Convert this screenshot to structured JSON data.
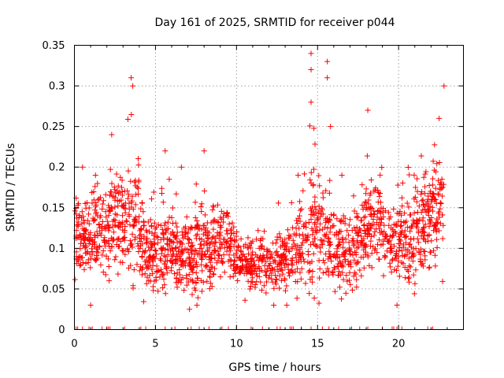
{
  "chart_data": {
    "type": "scatter",
    "title": "Day 161 of 2025, SRMTID for receiver p044",
    "xlabel": "GPS time / hours",
    "ylabel": "SRMTID / TECUs",
    "xlim": [
      0,
      24
    ],
    "ylim": [
      0,
      0.35
    ],
    "x_ticks": [
      0,
      5,
      10,
      15,
      20
    ],
    "x_tick_labels": [
      "0",
      "5",
      "10",
      "15",
      "20"
    ],
    "y_ticks": [
      0,
      0.05,
      0.1,
      0.15,
      0.2,
      0.25,
      0.3,
      0.35
    ],
    "y_tick_labels": [
      "0",
      "0.05",
      "0.1",
      "0.15",
      "0.2",
      "0.25",
      "0.3",
      "0.35"
    ],
    "grid": true,
    "marker": "+",
    "color": "#ff0000",
    "series": [
      {
        "name": "SRMTID",
        "profile": {
          "hours": [
            0,
            0.5,
            1,
            1.5,
            2,
            2.5,
            3,
            3.5,
            4,
            4.5,
            5,
            5.5,
            6,
            6.5,
            7,
            7.5,
            8,
            8.5,
            9,
            9.5,
            10,
            10.5,
            11,
            11.5,
            12,
            12.5,
            13,
            13.5,
            14,
            14.5,
            15,
            15.5,
            16,
            16.5,
            17,
            17.5,
            18,
            18.5,
            19,
            19.5,
            20,
            20.5,
            21,
            21.5,
            22,
            22.5,
            23
          ],
          "typical": [
            0.12,
            0.11,
            0.11,
            0.12,
            0.12,
            0.14,
            0.13,
            0.14,
            0.12,
            0.1,
            0.09,
            0.1,
            0.1,
            0.09,
            0.09,
            0.09,
            0.1,
            0.1,
            0.11,
            0.11,
            0.09,
            0.08,
            0.08,
            0.085,
            0.08,
            0.08,
            0.085,
            0.09,
            0.1,
            0.12,
            0.12,
            0.12,
            0.1,
            0.09,
            0.09,
            0.1,
            0.13,
            0.14,
            0.12,
            0.11,
            0.1,
            0.11,
            0.12,
            0.13,
            0.14,
            0.14,
            0.16
          ],
          "spread": [
            0.05,
            0.06,
            0.05,
            0.05,
            0.07,
            0.07,
            0.08,
            0.09,
            0.07,
            0.06,
            0.05,
            0.06,
            0.05,
            0.05,
            0.05,
            0.06,
            0.06,
            0.05,
            0.05,
            0.05,
            0.04,
            0.04,
            0.04,
            0.04,
            0.04,
            0.04,
            0.04,
            0.05,
            0.06,
            0.09,
            0.08,
            0.08,
            0.06,
            0.05,
            0.05,
            0.06,
            0.07,
            0.07,
            0.06,
            0.05,
            0.06,
            0.06,
            0.07,
            0.07,
            0.08,
            0.09,
            0.08
          ]
        },
        "peaks": [
          {
            "x": 3.5,
            "y": 0.31
          },
          {
            "x": 3.6,
            "y": 0.3
          },
          {
            "x": 2.3,
            "y": 0.24
          },
          {
            "x": 5.6,
            "y": 0.22
          },
          {
            "x": 8.0,
            "y": 0.22
          },
          {
            "x": 14.6,
            "y": 0.34
          },
          {
            "x": 14.6,
            "y": 0.32
          },
          {
            "x": 14.6,
            "y": 0.28
          },
          {
            "x": 15.6,
            "y": 0.33
          },
          {
            "x": 15.6,
            "y": 0.31
          },
          {
            "x": 15.8,
            "y": 0.25
          },
          {
            "x": 18.1,
            "y": 0.27
          },
          {
            "x": 22.5,
            "y": 0.26
          },
          {
            "x": 22.8,
            "y": 0.3
          },
          {
            "x": 0.5,
            "y": 0.2
          },
          {
            "x": 1.3,
            "y": 0.19
          },
          {
            "x": 6.6,
            "y": 0.2
          },
          {
            "x": 13.8,
            "y": 0.19
          },
          {
            "x": 16.5,
            "y": 0.19
          },
          {
            "x": 19.9,
            "y": 0.03
          },
          {
            "x": 1.0,
            "y": 0.03
          },
          {
            "x": 12.3,
            "y": 0.03
          },
          {
            "x": 13.1,
            "y": 0.03
          },
          {
            "x": 7.1,
            "y": 0.025
          }
        ],
        "zero_markers": [
          0.1,
          0.2,
          0.5,
          0.9,
          1.1,
          1.7,
          2.0,
          2.1,
          2.2,
          3.1,
          4.1,
          4.4,
          5.0,
          5.6,
          6.2,
          7.2,
          7.7,
          8.3,
          9.1,
          9.5,
          10.0,
          10.9,
          11.6,
          12.5,
          12.7,
          13.3,
          13.4,
          13.5,
          14.0,
          14.6,
          15.3,
          15.7,
          16.3,
          17.1,
          17.6,
          18.1,
          19.0,
          19.6,
          19.7,
          19.9,
          20.2,
          21.8,
          22.1
        ]
      }
    ]
  }
}
